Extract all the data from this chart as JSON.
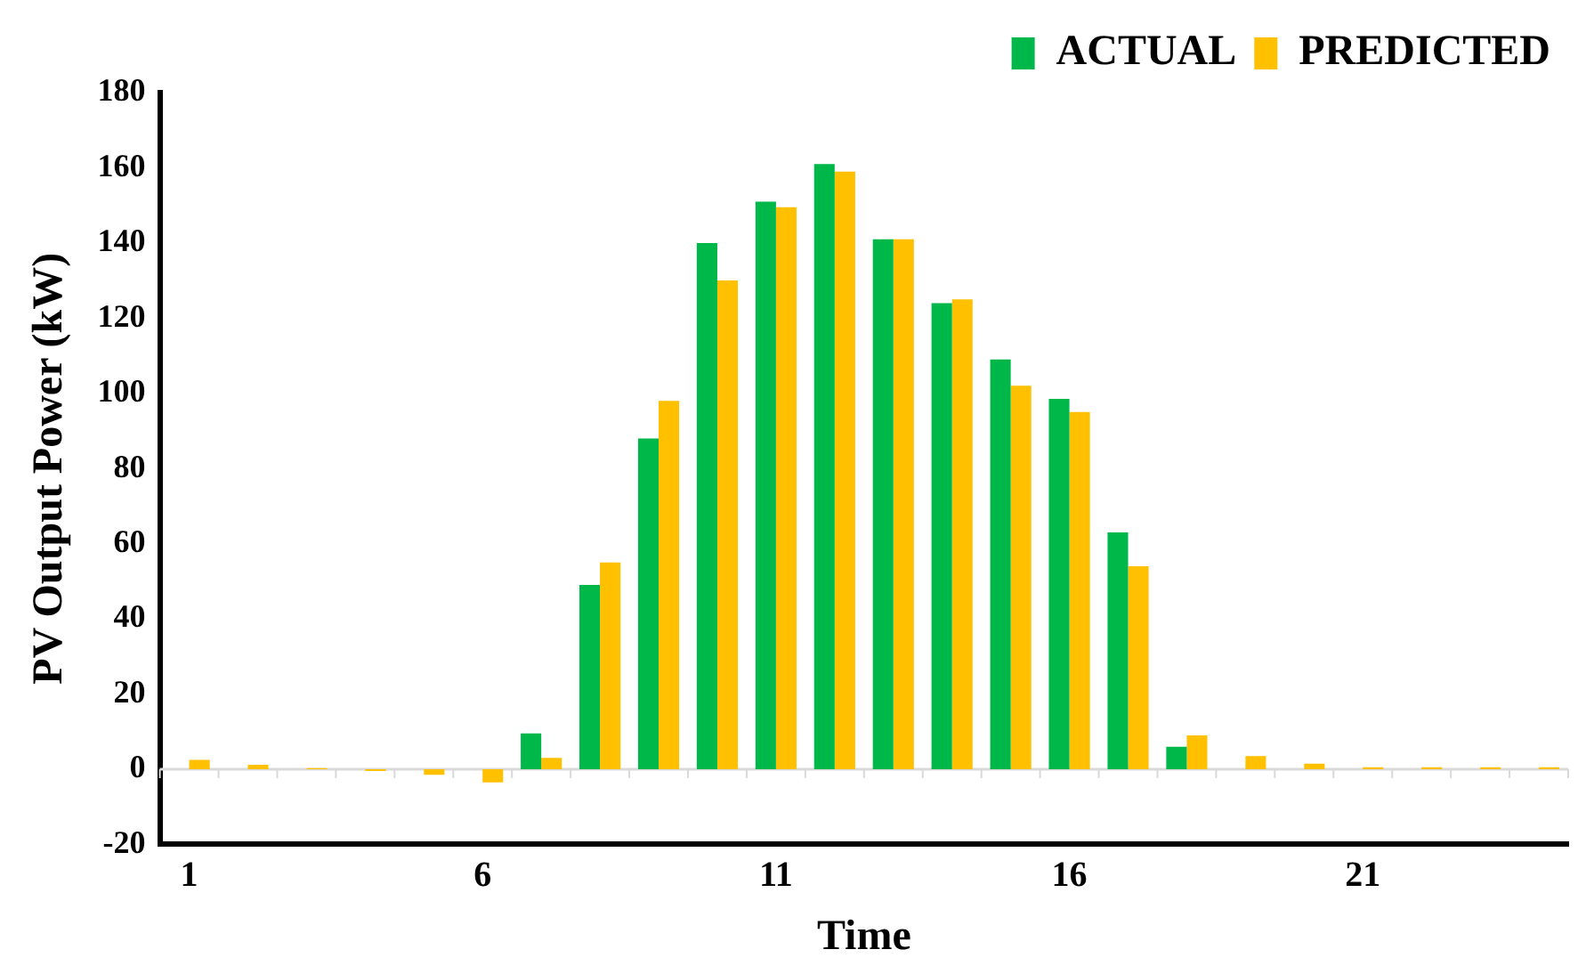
{
  "chart_data": {
    "type": "bar",
    "xlabel": "Time",
    "ylabel": "PV Output Power (kW)",
    "categories": [
      "1",
      null,
      null,
      null,
      null,
      "6",
      null,
      null,
      null,
      null,
      "11",
      null,
      null,
      null,
      null,
      "16",
      null,
      null,
      null,
      null,
      "21",
      null,
      null,
      null
    ],
    "series": [
      {
        "name": "ACTUAL",
        "color": "#00b84a",
        "values": [
          0,
          0,
          0,
          0,
          0,
          0,
          9.5,
          49,
          88,
          140,
          151,
          161,
          141,
          124,
          109,
          98.5,
          63,
          6,
          0,
          0,
          0,
          0,
          0,
          0
        ]
      },
      {
        "name": "PREDICTED",
        "color": "#ffc000",
        "values": [
          2.5,
          1.2,
          0.3,
          -0.5,
          -1.5,
          -3.5,
          3,
          55,
          98,
          130,
          149.5,
          159,
          141,
          125,
          102,
          95,
          54,
          9,
          3.5,
          1.5,
          0.5,
          0.5,
          0.5,
          0.5
        ]
      }
    ],
    "ylim": [
      -20,
      180
    ],
    "yticks": [
      -20,
      0,
      20,
      40,
      60,
      80,
      100,
      120,
      140,
      160,
      180
    ],
    "ref_lines": [
      {
        "axis": "y",
        "value": 0,
        "color": "#d9d9d9"
      }
    ],
    "grid": false,
    "legend": "top right"
  }
}
